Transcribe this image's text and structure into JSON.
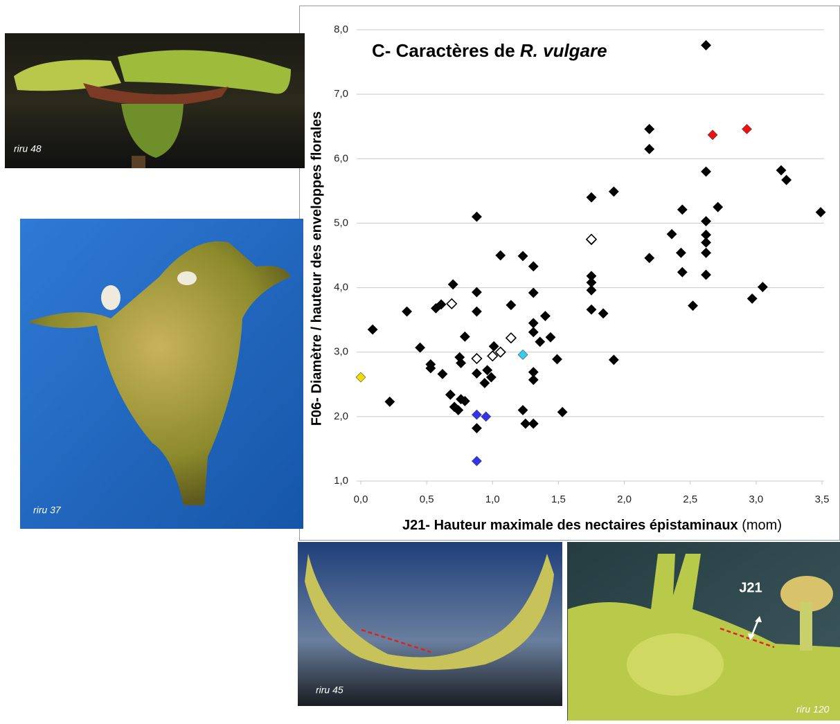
{
  "chart_data": {
    "type": "scatter",
    "title": [
      "C- Caractères de",
      "R. vulgare"
    ],
    "x_label": [
      "J21- Hauteur maximale des nectaires épistaminaux",
      "(mom)"
    ],
    "y_label": "F06- Diamètre / hauteur des enveloppes florales",
    "xlim": [
      0,
      3.5
    ],
    "xticks": [
      {
        "value": 0,
        "label": "0,0"
      },
      {
        "value": 0.5,
        "label": "0,5"
      },
      {
        "value": 1,
        "label": "1,0"
      },
      {
        "value": 1.5,
        "label": "1,5"
      },
      {
        "value": 2,
        "label": "2,0"
      },
      {
        "value": 2.5,
        "label": "2,5"
      },
      {
        "value": 3,
        "label": "3,0"
      },
      {
        "value": 3.5,
        "label": "3,5"
      }
    ],
    "ylim": [
      1,
      8
    ],
    "yticks": [
      {
        "value": 1,
        "label": "1,0"
      },
      {
        "value": 2,
        "label": "2,0"
      },
      {
        "value": 3,
        "label": "3,0"
      },
      {
        "value": 4,
        "label": "4,0"
      },
      {
        "value": 5,
        "label": "5,0"
      },
      {
        "value": 6,
        "label": "6,0"
      },
      {
        "value": 7,
        "label": "7,0"
      },
      {
        "value": 8,
        "label": "8,0"
      }
    ],
    "grid": true,
    "series": [
      {
        "color": "#000000",
        "marker": "filled",
        "x": [
          0.09,
          0.22,
          0.35,
          0.45,
          0.53,
          0.53,
          0.57,
          0.61,
          0.62,
          0.68,
          0.7,
          0.71,
          0.74,
          0.75,
          0.76,
          0.76,
          0.79,
          0.79,
          0.88,
          0.88,
          0.88,
          0.88,
          0.88,
          0.94,
          0.96,
          0.99,
          1.01,
          1.06,
          1.14,
          1.23,
          1.23,
          1.25,
          1.31,
          1.31,
          1.31,
          1.31,
          1.31,
          1.31,
          1.31,
          1.36,
          1.4,
          1.44,
          1.49,
          1.53,
          1.75,
          1.75,
          1.75,
          1.75,
          1.75,
          1.75,
          1.84,
          1.92,
          1.92,
          2.19,
          2.19,
          2.19,
          2.36,
          2.44,
          2.43,
          2.44,
          2.52,
          2.62,
          2.62,
          2.62,
          2.62,
          2.62,
          2.62,
          2.62,
          2.71,
          2.97,
          3.05,
          3.19,
          3.23,
          3.49
        ],
        "values": [
          3.35,
          2.23,
          3.63,
          3.07,
          2.81,
          2.75,
          3.68,
          3.74,
          2.66,
          2.34,
          4.05,
          2.15,
          2.1,
          2.92,
          2.83,
          2.27,
          3.24,
          2.24,
          5.1,
          3.93,
          3.63,
          2.67,
          1.82,
          2.52,
          2.72,
          2.61,
          3.09,
          4.5,
          3.73,
          4.49,
          2.1,
          1.89,
          4.33,
          3.92,
          3.45,
          3.31,
          2.69,
          2.57,
          1.89,
          3.16,
          3.56,
          3.23,
          2.89,
          2.07,
          5.4,
          4.74,
          4.18,
          4.08,
          3.96,
          3.66,
          3.6,
          5.49,
          2.88,
          6.46,
          6.15,
          4.46,
          4.83,
          5.21,
          4.54,
          4.24,
          3.72,
          7.76,
          5.8,
          5.03,
          4.82,
          4.7,
          4.54,
          4.2,
          5.25,
          3.83,
          4.01,
          5.82,
          5.67,
          5.17
        ]
      },
      {
        "color": "#000000",
        "marker": "open",
        "x": [
          0.69,
          0.88,
          1.0,
          1.06,
          1.14,
          1.75
        ],
        "values": [
          3.75,
          2.9,
          2.94,
          3.0,
          3.22,
          4.75
        ]
      },
      {
        "color": "#3333ee",
        "marker": "filled",
        "x": [
          0.88,
          0.95,
          0.88
        ],
        "values": [
          2.03,
          2.0,
          1.31
        ]
      },
      {
        "color": "#ee1111",
        "marker": "filled",
        "x": [
          2.67,
          2.93
        ],
        "values": [
          6.37,
          6.46
        ]
      },
      {
        "color": "#33ccee",
        "marker": "filled",
        "x": [
          1.23
        ],
        "values": [
          2.96
        ]
      },
      {
        "color": "#eedd00",
        "marker": "filled",
        "x": [
          0.0
        ],
        "values": [
          2.61
        ]
      }
    ]
  },
  "photos": [
    {
      "label": "riru 48"
    },
    {
      "label": "riru 37"
    },
    {
      "label": "riru 45"
    },
    {
      "label": "riru 120"
    }
  ],
  "annotation": "J21"
}
